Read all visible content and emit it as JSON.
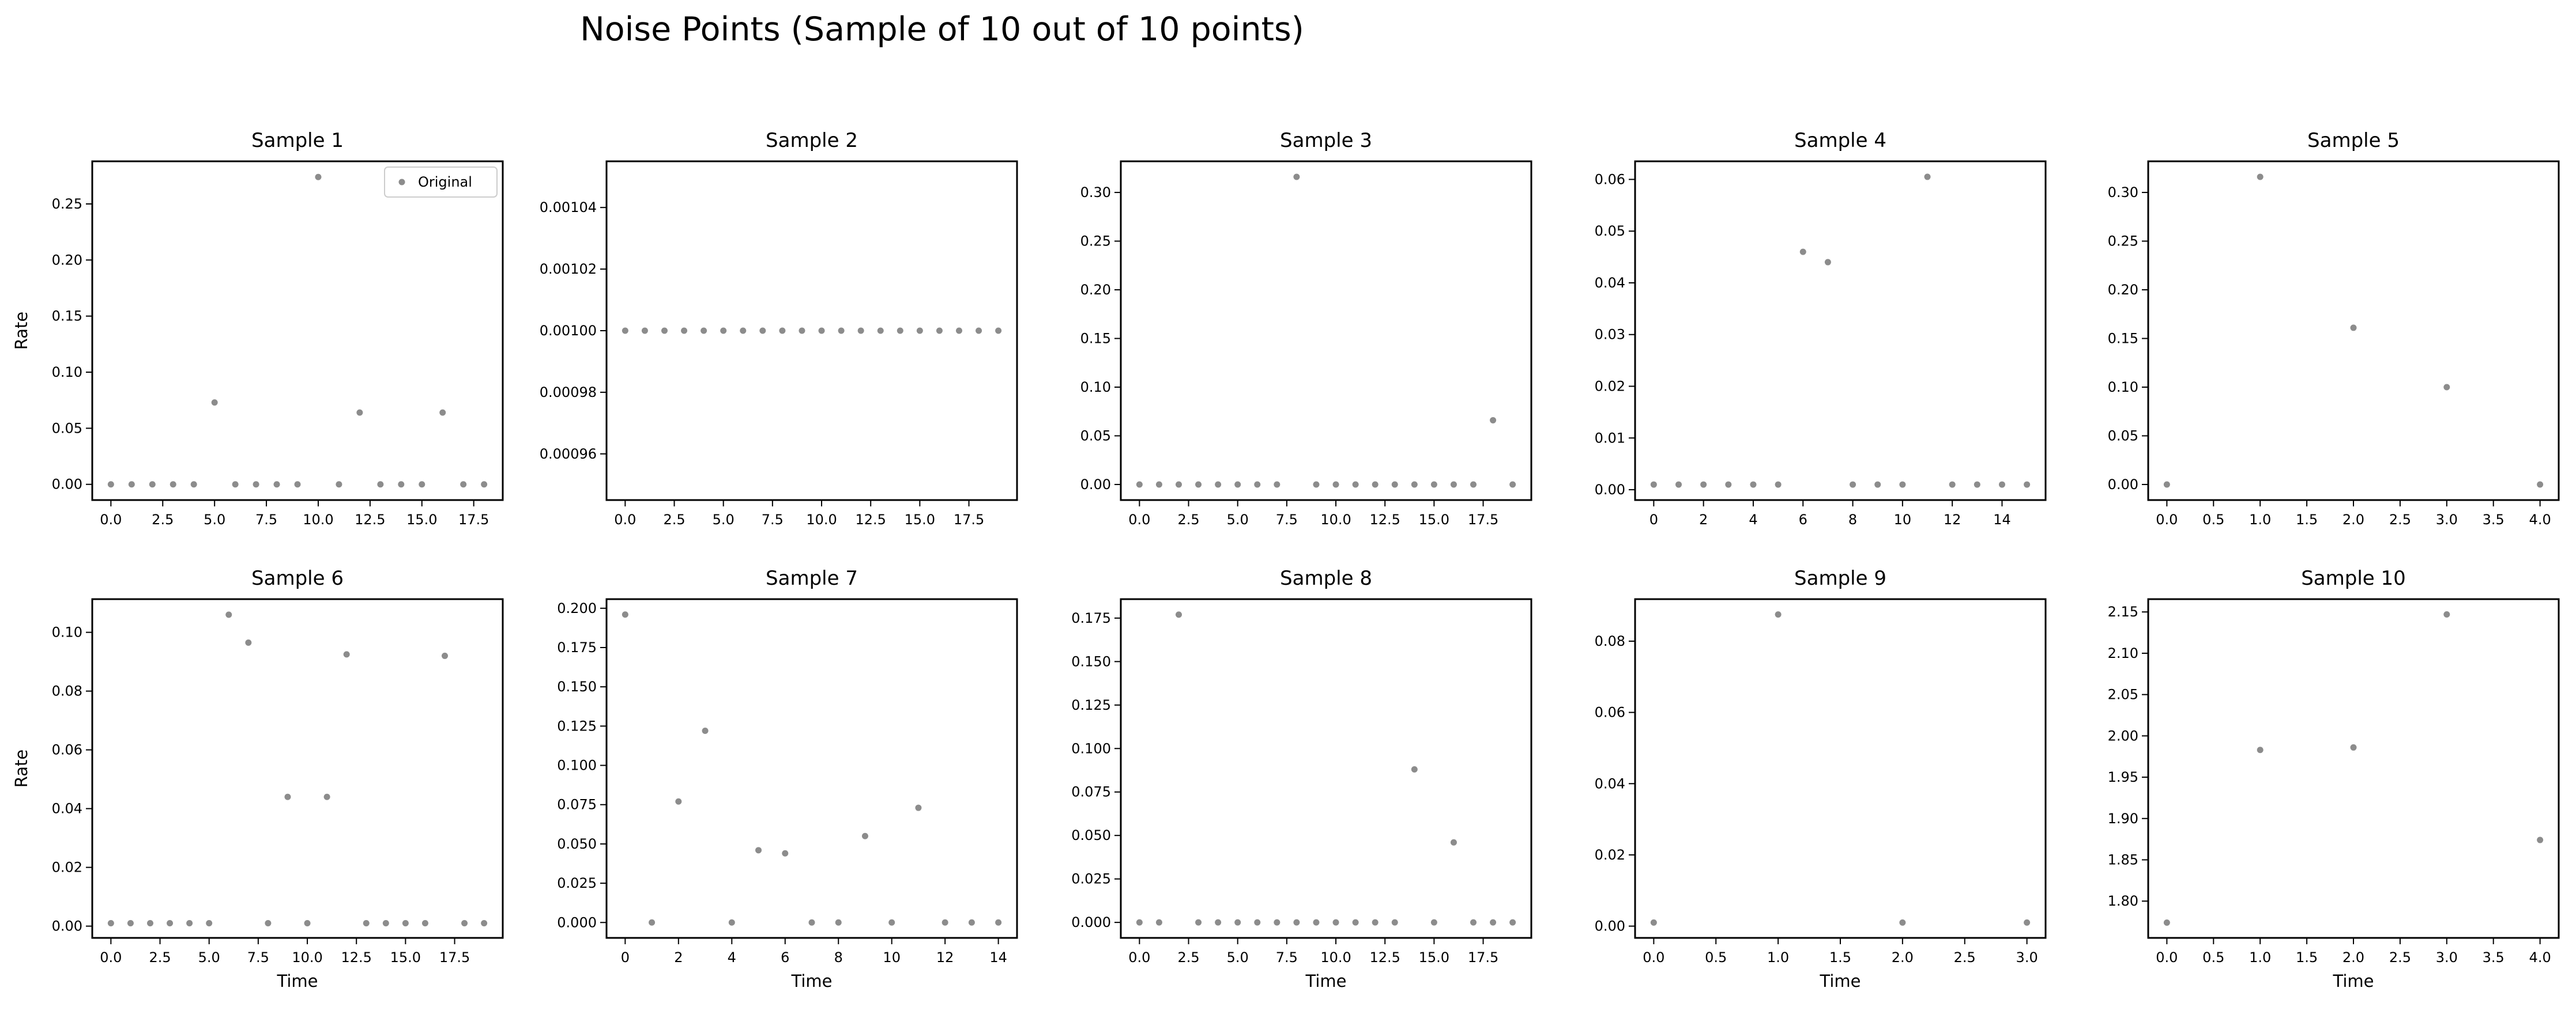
{
  "figure": {
    "title": "Noise Points (Sample of 10 out of 10 points)"
  },
  "colors": {
    "point": "#8c8c8c",
    "axis": "#000000"
  },
  "chart_data": [
    {
      "type": "scatter",
      "title": "Sample 1",
      "xlabel": "",
      "ylabel": "Rate",
      "x": [
        0,
        1,
        2,
        3,
        4,
        5,
        6,
        7,
        8,
        9,
        10,
        11,
        12,
        13,
        14,
        15,
        16,
        17,
        18
      ],
      "y": [
        0,
        0,
        0,
        0,
        0,
        0.073,
        0,
        0,
        0,
        0,
        0.274,
        0,
        0.064,
        0,
        0,
        0,
        0.064,
        0,
        0
      ],
      "xlim": [
        -0.9,
        18.9
      ],
      "ylim": [
        -0.014,
        0.288
      ],
      "xticks": [
        0,
        2.5,
        5,
        7.5,
        10,
        12.5,
        15,
        17.5
      ],
      "xtick_labels": [
        "0.0",
        "2.5",
        "5.0",
        "7.5",
        "10.0",
        "12.5",
        "15.0",
        "17.5"
      ],
      "yticks": [
        0,
        0.05,
        0.1,
        0.15,
        0.2,
        0.25
      ],
      "ytick_labels": [
        "0.00",
        "0.05",
        "0.10",
        "0.15",
        "0.20",
        "0.25"
      ],
      "legend": {
        "entries": [
          "Original"
        ],
        "position": "top-right"
      }
    },
    {
      "type": "scatter",
      "title": "Sample 2",
      "xlabel": "",
      "ylabel": "",
      "x": [
        0,
        1,
        2,
        3,
        4,
        5,
        6,
        7,
        8,
        9,
        10,
        11,
        12,
        13,
        14,
        15,
        16,
        17,
        18,
        19
      ],
      "y": [
        0.001,
        0.001,
        0.001,
        0.001,
        0.001,
        0.001,
        0.001,
        0.001,
        0.001,
        0.001,
        0.001,
        0.001,
        0.001,
        0.001,
        0.001,
        0.001,
        0.001,
        0.001,
        0.001,
        0.001
      ],
      "xlim": [
        -0.95,
        19.95
      ],
      "ylim": [
        0.000945,
        0.001055
      ],
      "xticks": [
        0,
        2.5,
        5,
        7.5,
        10,
        12.5,
        15,
        17.5
      ],
      "xtick_labels": [
        "0.0",
        "2.5",
        "5.0",
        "7.5",
        "10.0",
        "12.5",
        "15.0",
        "17.5"
      ],
      "yticks": [
        0.00096,
        0.00098,
        0.001,
        0.00102,
        0.00104
      ],
      "ytick_labels": [
        "0.00096",
        "0.00098",
        "0.00100",
        "0.00102",
        "0.00104"
      ]
    },
    {
      "type": "scatter",
      "title": "Sample 3",
      "xlabel": "",
      "ylabel": "",
      "x": [
        0,
        1,
        2,
        3,
        4,
        5,
        6,
        7,
        8,
        9,
        10,
        11,
        12,
        13,
        14,
        15,
        16,
        17,
        18,
        19
      ],
      "y": [
        0,
        0,
        0,
        0,
        0,
        0,
        0,
        0,
        0.316,
        0,
        0,
        0,
        0,
        0,
        0,
        0,
        0,
        0,
        0.066,
        0
      ],
      "xlim": [
        -0.95,
        19.95
      ],
      "ylim": [
        -0.016,
        0.332
      ],
      "xticks": [
        0,
        2.5,
        5,
        7.5,
        10,
        12.5,
        15,
        17.5
      ],
      "xtick_labels": [
        "0.0",
        "2.5",
        "5.0",
        "7.5",
        "10.0",
        "12.5",
        "15.0",
        "17.5"
      ],
      "yticks": [
        0,
        0.05,
        0.1,
        0.15,
        0.2,
        0.25,
        0.3
      ],
      "ytick_labels": [
        "0.00",
        "0.05",
        "0.10",
        "0.15",
        "0.20",
        "0.25",
        "0.30"
      ]
    },
    {
      "type": "scatter",
      "title": "Sample 4",
      "xlabel": "",
      "ylabel": "",
      "x": [
        0,
        1,
        2,
        3,
        4,
        5,
        6,
        7,
        8,
        9,
        10,
        11,
        12,
        13,
        14,
        15
      ],
      "y": [
        0.001,
        0.001,
        0.001,
        0.001,
        0.001,
        0.001,
        0.046,
        0.044,
        0.001,
        0.001,
        0.001,
        0.0605,
        0.001,
        0.001,
        0.001,
        0.001
      ],
      "xlim": [
        -0.75,
        15.75
      ],
      "ylim": [
        -0.002,
        0.0635
      ],
      "xticks": [
        0,
        2,
        4,
        6,
        8,
        10,
        12,
        14
      ],
      "xtick_labels": [
        "0",
        "2",
        "4",
        "6",
        "8",
        "10",
        "12",
        "14"
      ],
      "yticks": [
        0,
        0.01,
        0.02,
        0.03,
        0.04,
        0.05,
        0.06
      ],
      "ytick_labels": [
        "0.00",
        "0.01",
        "0.02",
        "0.03",
        "0.04",
        "0.05",
        "0.06"
      ]
    },
    {
      "type": "scatter",
      "title": "Sample 5",
      "xlabel": "",
      "ylabel": "",
      "x": [
        0,
        1,
        2,
        3,
        4
      ],
      "y": [
        0,
        0.316,
        0.161,
        0.1,
        0
      ],
      "xlim": [
        -0.2,
        4.2
      ],
      "ylim": [
        -0.016,
        0.332
      ],
      "xticks": [
        0,
        0.5,
        1,
        1.5,
        2,
        2.5,
        3,
        3.5,
        4
      ],
      "xtick_labels": [
        "0.0",
        "0.5",
        "1.0",
        "1.5",
        "2.0",
        "2.5",
        "3.0",
        "3.5",
        "4.0"
      ],
      "yticks": [
        0,
        0.05,
        0.1,
        0.15,
        0.2,
        0.25,
        0.3
      ],
      "ytick_labels": [
        "0.00",
        "0.05",
        "0.10",
        "0.15",
        "0.20",
        "0.25",
        "0.30"
      ]
    },
    {
      "type": "scatter",
      "title": "Sample 6",
      "xlabel": "Time",
      "ylabel": "Rate",
      "x": [
        0,
        1,
        2,
        3,
        4,
        5,
        6,
        7,
        8,
        9,
        10,
        11,
        12,
        13,
        14,
        15,
        16,
        17,
        18,
        19
      ],
      "y": [
        0.001,
        0.001,
        0.001,
        0.001,
        0.001,
        0.001,
        0.106,
        0.0965,
        0.001,
        0.044,
        0.001,
        0.044,
        0.0925,
        0.001,
        0.001,
        0.001,
        0.001,
        0.092,
        0.001,
        0.001
      ],
      "xlim": [
        -0.95,
        19.95
      ],
      "ylim": [
        -0.004,
        0.1113
      ],
      "xticks": [
        0,
        2.5,
        5,
        7.5,
        10,
        12.5,
        15,
        17.5
      ],
      "xtick_labels": [
        "0.0",
        "2.5",
        "5.0",
        "7.5",
        "10.0",
        "12.5",
        "15.0",
        "17.5"
      ],
      "yticks": [
        0,
        0.02,
        0.04,
        0.06,
        0.08,
        0.1
      ],
      "ytick_labels": [
        "0.00",
        "0.02",
        "0.04",
        "0.06",
        "0.08",
        "0.10"
      ]
    },
    {
      "type": "scatter",
      "title": "Sample 7",
      "xlabel": "Time",
      "ylabel": "",
      "x": [
        0,
        1,
        2,
        3,
        4,
        5,
        6,
        7,
        8,
        9,
        10,
        11,
        12,
        13,
        14
      ],
      "y": [
        0.196,
        0,
        0.077,
        0.122,
        0,
        0.046,
        0.044,
        0,
        0,
        0.055,
        0,
        0.073,
        0,
        0,
        0
      ],
      "xlim": [
        -0.7,
        14.7
      ],
      "ylim": [
        -0.0098,
        0.2058
      ],
      "xticks": [
        0,
        2,
        4,
        6,
        8,
        10,
        12,
        14
      ],
      "xtick_labels": [
        "0",
        "2",
        "4",
        "6",
        "8",
        "10",
        "12",
        "14"
      ],
      "yticks": [
        0,
        0.025,
        0.05,
        0.075,
        0.1,
        0.125,
        0.15,
        0.175,
        0.2
      ],
      "ytick_labels": [
        "0.000",
        "0.025",
        "0.050",
        "0.075",
        "0.100",
        "0.125",
        "0.150",
        "0.175",
        "0.200"
      ]
    },
    {
      "type": "scatter",
      "title": "Sample 8",
      "xlabel": "Time",
      "ylabel": "",
      "x": [
        0,
        1,
        2,
        3,
        4,
        5,
        6,
        7,
        8,
        9,
        10,
        11,
        12,
        13,
        14,
        15,
        16,
        17,
        18,
        19
      ],
      "y": [
        0,
        0,
        0.177,
        0,
        0,
        0,
        0,
        0,
        0,
        0,
        0,
        0,
        0,
        0,
        0.088,
        0,
        0.046,
        0,
        0,
        0
      ],
      "xlim": [
        -0.95,
        19.95
      ],
      "ylim": [
        -0.0089,
        0.1859
      ],
      "xticks": [
        0,
        2.5,
        5,
        7.5,
        10,
        12.5,
        15,
        17.5
      ],
      "xtick_labels": [
        "0.0",
        "2.5",
        "5.0",
        "7.5",
        "10.0",
        "12.5",
        "15.0",
        "17.5"
      ],
      "yticks": [
        0,
        0.025,
        0.05,
        0.075,
        0.1,
        0.125,
        0.15,
        0.175
      ],
      "ytick_labels": [
        "0.000",
        "0.025",
        "0.050",
        "0.075",
        "0.100",
        "0.125",
        "0.150",
        "0.175"
      ]
    },
    {
      "type": "scatter",
      "title": "Sample 9",
      "xlabel": "Time",
      "ylabel": "",
      "x": [
        0,
        1,
        2,
        3
      ],
      "y": [
        0.001,
        0.0875,
        0.001,
        0.001
      ],
      "xlim": [
        -0.15,
        3.15
      ],
      "ylim": [
        -0.0033,
        0.0918
      ],
      "xticks": [
        0,
        0.5,
        1,
        1.5,
        2,
        2.5,
        3
      ],
      "xtick_labels": [
        "0.0",
        "0.5",
        "1.0",
        "1.5",
        "2.0",
        "2.5",
        "3.0"
      ],
      "yticks": [
        0,
        0.02,
        0.04,
        0.06,
        0.08
      ],
      "ytick_labels": [
        "0.00",
        "0.02",
        "0.04",
        "0.06",
        "0.08"
      ]
    },
    {
      "type": "scatter",
      "title": "Sample 10",
      "xlabel": "Time",
      "ylabel": "",
      "x": [
        0,
        1,
        2,
        3,
        4
      ],
      "y": [
        1.774,
        1.983,
        1.986,
        2.147,
        1.874
      ],
      "xlim": [
        -0.2,
        4.2
      ],
      "ylim": [
        1.7555,
        2.1655
      ],
      "xticks": [
        0,
        0.5,
        1,
        1.5,
        2,
        2.5,
        3,
        3.5,
        4
      ],
      "xtick_labels": [
        "0.0",
        "0.5",
        "1.0",
        "1.5",
        "2.0",
        "2.5",
        "3.0",
        "3.5",
        "4.0"
      ],
      "yticks": [
        1.8,
        1.85,
        1.9,
        1.95,
        2,
        2.05,
        2.1,
        2.15
      ],
      "ytick_labels": [
        "1.80",
        "1.85",
        "1.90",
        "1.95",
        "2.00",
        "2.05",
        "2.10",
        "2.15"
      ]
    }
  ]
}
